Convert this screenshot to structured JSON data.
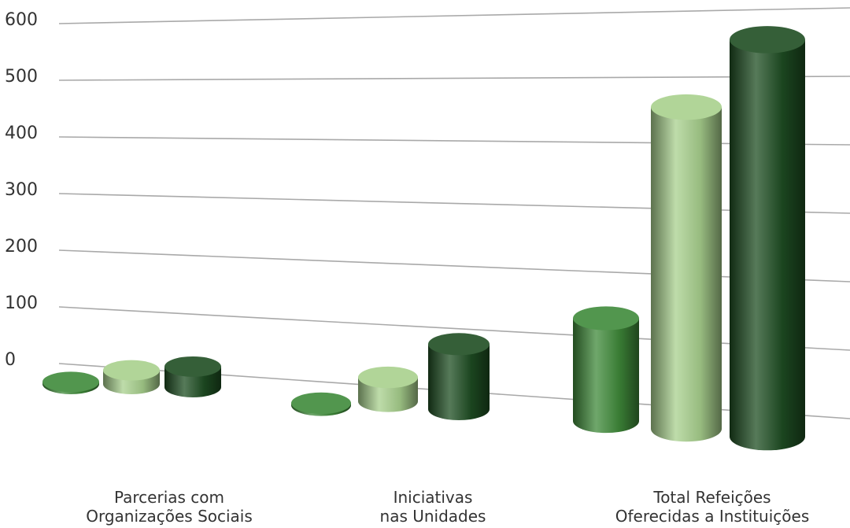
{
  "chart_data": {
    "type": "bar3d",
    "categories": [
      "Parcerias com\nOrganizações Sociais",
      "Iniciativas\nnas Unidades",
      "Total Refeições\nOferecidas a Instituições"
    ],
    "series": [
      {
        "color": "#3f8a3a",
        "values": [
          3,
          3,
          150
        ]
      },
      {
        "color": "#a8d08d",
        "values": [
          20,
          35,
          470
        ]
      },
      {
        "color": "#1e4d22",
        "values": [
          30,
          95,
          580
        ]
      }
    ],
    "ylim": [
      0,
      600
    ],
    "yticks": [
      0,
      100,
      200,
      300,
      400,
      500,
      600
    ],
    "grid": true
  }
}
